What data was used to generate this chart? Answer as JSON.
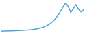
{
  "line_color": "#3a9fd1",
  "line_width": 1.0,
  "background_color": "#ffffff",
  "values": [
    0.5,
    0.6,
    0.65,
    0.7,
    0.75,
    0.85,
    0.95,
    1.05,
    1.15,
    1.3,
    1.45,
    1.65,
    1.9,
    2.2,
    2.6,
    3.1,
    3.8,
    4.7,
    5.8,
    7.2,
    9.0,
    11.5,
    14.5,
    18.0,
    22.0,
    25.5,
    22.5,
    17.0,
    20.5,
    24.0,
    20.0,
    17.5,
    19.5
  ],
  "ylim_min": 0.0,
  "ylim_max": 27.0
}
